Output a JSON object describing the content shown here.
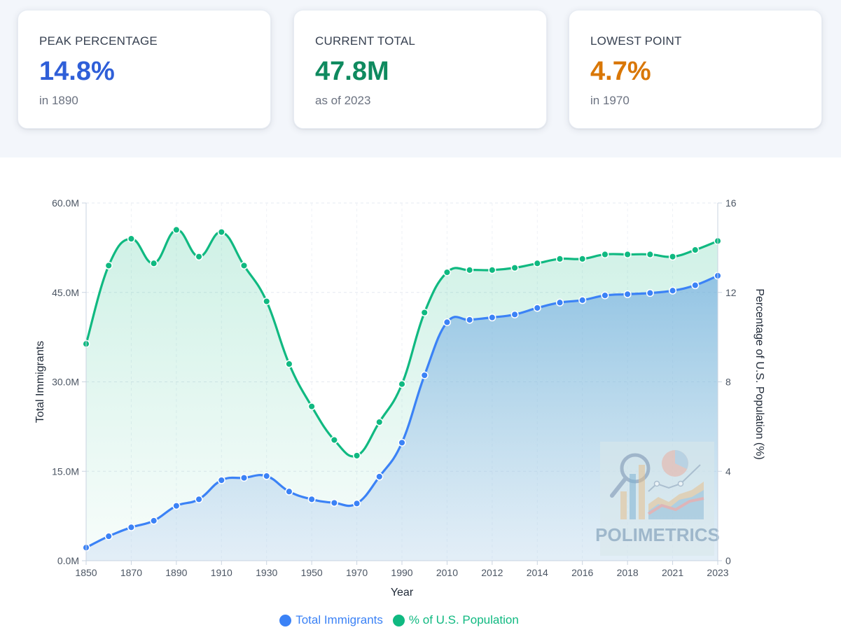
{
  "cards": [
    {
      "label": "PEAK PERCENTAGE",
      "value": "14.8%",
      "sub": "in 1890",
      "color": "#2f5fd8"
    },
    {
      "label": "CURRENT TOTAL",
      "value": "47.8M",
      "sub": "as of 2023",
      "color": "#0f8a5f"
    },
    {
      "label": "LOWEST POINT",
      "value": "4.7%",
      "sub": "in 1970",
      "color": "#d97706"
    }
  ],
  "watermark": {
    "text": "POLIMETRICS"
  },
  "chart_data": {
    "type": "area",
    "xlabel": "Year",
    "ylabel_left": "Total Immigrants",
    "ylabel_right": "Percentage of U.S. Population (%)",
    "ylim_left": [
      0,
      60
    ],
    "ylim_right": [
      0,
      16
    ],
    "left_ticks": [
      "0.0M",
      "15.0M",
      "30.0M",
      "45.0M",
      "60.0M"
    ],
    "right_ticks": [
      "0",
      "4",
      "8",
      "12",
      "16"
    ],
    "x": [
      "1850",
      "1860",
      "1870",
      "1880",
      "1890",
      "1900",
      "1910",
      "1920",
      "1930",
      "1940",
      "1950",
      "1960",
      "1970",
      "1980",
      "1990",
      "2000",
      "2010",
      "2011",
      "2012",
      "2013",
      "2014",
      "2015",
      "2016",
      "2017",
      "2018",
      "2019",
      "2021",
      "2022",
      "2023"
    ],
    "x_tick_labels": [
      "1850",
      "1870",
      "1890",
      "1910",
      "1930",
      "1950",
      "1970",
      "1990",
      "2010",
      "2012",
      "2014",
      "2016",
      "2018",
      "2021",
      "2023"
    ],
    "series": [
      {
        "name": "Total Immigrants",
        "unit": "millions",
        "color": "#3b82f6",
        "values": [
          2.2,
          4.1,
          5.6,
          6.7,
          9.2,
          10.3,
          13.5,
          13.9,
          14.2,
          11.6,
          10.3,
          9.7,
          9.6,
          14.1,
          19.8,
          31.1,
          40.0,
          40.4,
          40.8,
          41.3,
          42.4,
          43.3,
          43.7,
          44.5,
          44.7,
          44.9,
          45.3,
          46.2,
          47.8
        ]
      },
      {
        "name": "% of U.S. Population",
        "unit": "percent",
        "color": "#10b981",
        "values": [
          9.7,
          13.2,
          14.4,
          13.3,
          14.8,
          13.6,
          14.7,
          13.2,
          11.6,
          8.8,
          6.9,
          5.4,
          4.7,
          6.2,
          7.9,
          11.1,
          12.9,
          13.0,
          13.0,
          13.1,
          13.3,
          13.5,
          13.5,
          13.7,
          13.7,
          13.7,
          13.6,
          13.9,
          14.3
        ]
      }
    ],
    "legend": [
      "Total Immigrants",
      "% of U.S. Population"
    ]
  }
}
